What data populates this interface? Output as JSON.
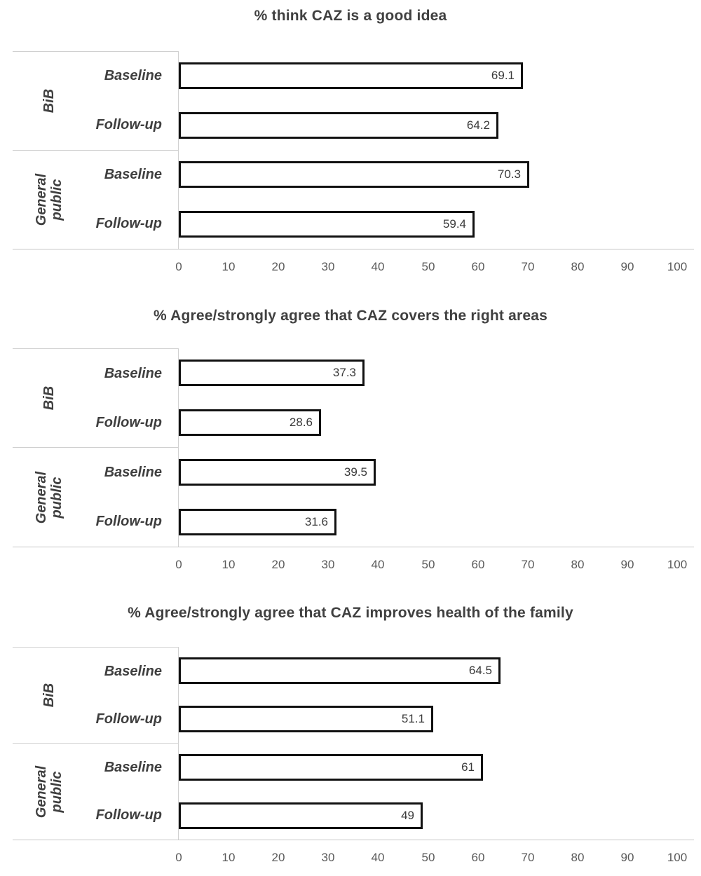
{
  "page": {
    "background": "#ffffff"
  },
  "colors": {
    "title_text": "#404040",
    "category_text": "#3f3f3f",
    "tick_text": "#595959",
    "value_text": "#3a3a3a",
    "bar_fill": "#ffffff",
    "bar_border": "#111111",
    "panel_line": "#d0d0d0",
    "axis_line": "#c6c6c6"
  },
  "chart_data": [
    {
      "type": "bar",
      "orientation": "horizontal",
      "title": "% think CAZ is a good idea",
      "xlabel": "",
      "ylabel": "",
      "xlim": [
        0,
        100
      ],
      "xticks": [
        0,
        10,
        20,
        30,
        40,
        50,
        60,
        70,
        80,
        90,
        100
      ],
      "grid": false,
      "legend": "none",
      "groups": [
        {
          "label": "BiB",
          "bars": [
            {
              "label": "Baseline",
              "value": 69.1,
              "value_label": "69.1"
            },
            {
              "label": "Follow-up",
              "value": 64.2,
              "value_label": "64.2"
            }
          ]
        },
        {
          "label": "General\npublic",
          "bars": [
            {
              "label": "Baseline",
              "value": 70.3,
              "value_label": "70.3"
            },
            {
              "label": "Follow-up",
              "value": 59.4,
              "value_label": "59.4"
            }
          ]
        }
      ]
    },
    {
      "type": "bar",
      "orientation": "horizontal",
      "title": "% Agree/strongly agree that CAZ covers the right areas",
      "xlabel": "",
      "ylabel": "",
      "xlim": [
        0,
        100
      ],
      "xticks": [
        0,
        10,
        20,
        30,
        40,
        50,
        60,
        70,
        80,
        90,
        100
      ],
      "grid": false,
      "legend": "none",
      "groups": [
        {
          "label": "BiB",
          "bars": [
            {
              "label": "Baseline",
              "value": 37.3,
              "value_label": "37.3"
            },
            {
              "label": "Follow-up",
              "value": 28.6,
              "value_label": "28.6"
            }
          ]
        },
        {
          "label": "General\npublic",
          "bars": [
            {
              "label": "Baseline",
              "value": 39.5,
              "value_label": "39.5"
            },
            {
              "label": "Follow-up",
              "value": 31.6,
              "value_label": "31.6"
            }
          ]
        }
      ]
    },
    {
      "type": "bar",
      "orientation": "horizontal",
      "title": "% Agree/strongly agree that CAZ improves health of the family",
      "xlabel": "",
      "ylabel": "",
      "xlim": [
        0,
        100
      ],
      "xticks": [
        0,
        10,
        20,
        30,
        40,
        50,
        60,
        70,
        80,
        90,
        100
      ],
      "grid": false,
      "legend": "none",
      "groups": [
        {
          "label": "BiB",
          "bars": [
            {
              "label": "Baseline",
              "value": 64.5,
              "value_label": "64.5"
            },
            {
              "label": "Follow-up",
              "value": 51.1,
              "value_label": "51.1"
            }
          ]
        },
        {
          "label": "General\npublic",
          "bars": [
            {
              "label": "Baseline",
              "value": 61,
              "value_label": "61"
            },
            {
              "label": "Follow-up",
              "value": 49,
              "value_label": "49"
            }
          ]
        }
      ]
    }
  ]
}
